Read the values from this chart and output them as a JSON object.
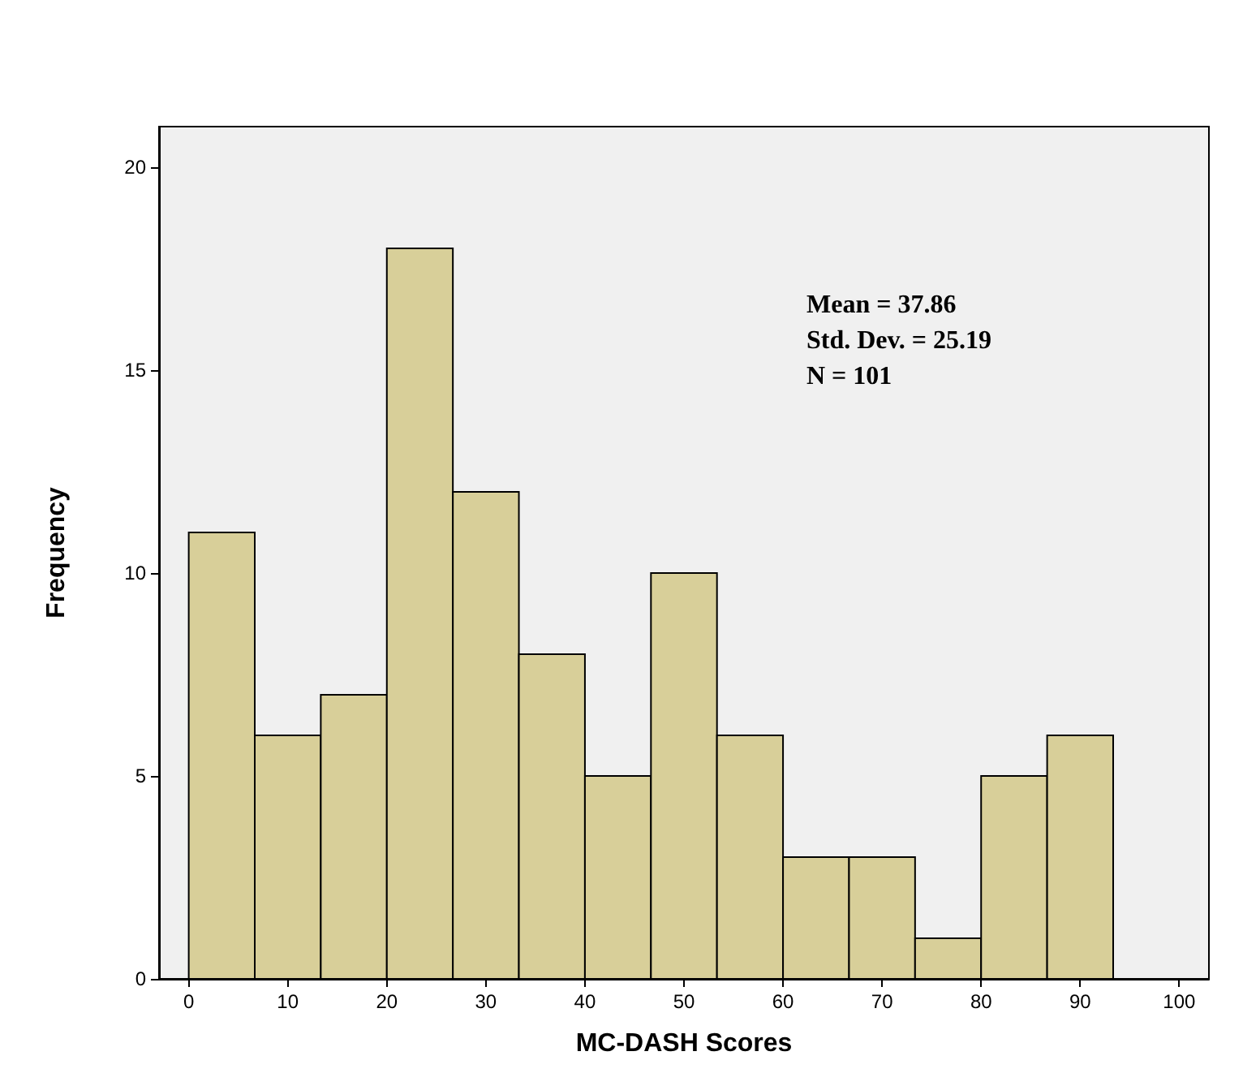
{
  "chart_data": {
    "type": "histogram",
    "xlabel": "MC-DASH Scores",
    "ylabel": "Frequency",
    "bins": [
      0,
      6.667,
      13.333,
      20,
      26.667,
      33.333,
      40,
      46.667,
      53.333,
      60,
      66.667,
      73.333,
      80,
      86.667,
      93.333
    ],
    "values": [
      11,
      6,
      7,
      18,
      12,
      8,
      5,
      10,
      6,
      3,
      3,
      1,
      5,
      6
    ],
    "color": "#d8cf99",
    "xlim": [
      -3,
      103
    ],
    "xticks": [
      0,
      10,
      20,
      30,
      40,
      50,
      60,
      70,
      80,
      90,
      100
    ],
    "ylim": [
      0,
      21
    ],
    "yticks": [
      0,
      5,
      10,
      15,
      20
    ],
    "grid": false,
    "annotations": [
      "Mean = 37.86",
      "Std. Dev. = 25.19",
      "N = 101"
    ]
  }
}
